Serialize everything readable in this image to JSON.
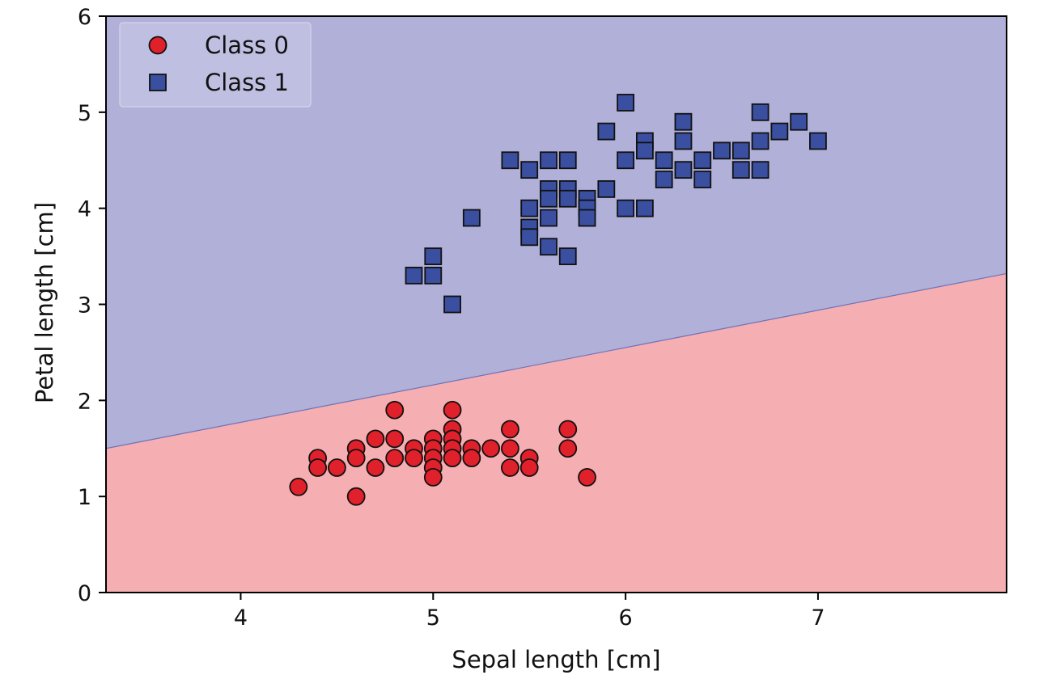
{
  "chart_data": {
    "type": "scatter",
    "xlabel": "Sepal length [cm]",
    "ylabel": "Petal length [cm]",
    "xlim": [
      3.3,
      7.98
    ],
    "ylim": [
      0,
      6
    ],
    "xticks": [
      4,
      5,
      6,
      7
    ],
    "yticks": [
      0,
      1,
      2,
      3,
      4,
      5,
      6
    ],
    "grid": false,
    "legend_position": "upper-left",
    "decision_boundary": {
      "description": "linear",
      "points": [
        [
          3.3,
          1.5
        ],
        [
          7.98,
          3.32
        ]
      ],
      "regions": [
        {
          "name": "Class 0",
          "side": "below",
          "color": "#f5afb3"
        },
        {
          "name": "Class 1",
          "side": "above",
          "color": "#b0b0d9"
        }
      ]
    },
    "series": [
      {
        "name": "Class 0",
        "marker": "circle",
        "color": "#e0202a",
        "points": [
          [
            4.3,
            1.1
          ],
          [
            4.4,
            1.4
          ],
          [
            4.4,
            1.3
          ],
          [
            4.5,
            1.3
          ],
          [
            4.6,
            1.5
          ],
          [
            4.6,
            1.4
          ],
          [
            4.6,
            1.0
          ],
          [
            4.7,
            1.6
          ],
          [
            4.7,
            1.3
          ],
          [
            4.8,
            1.9
          ],
          [
            4.8,
            1.6
          ],
          [
            4.8,
            1.4
          ],
          [
            4.9,
            1.5
          ],
          [
            4.9,
            1.4
          ],
          [
            5.0,
            1.6
          ],
          [
            5.0,
            1.5
          ],
          [
            5.0,
            1.4
          ],
          [
            5.0,
            1.3
          ],
          [
            5.0,
            1.2
          ],
          [
            5.1,
            1.9
          ],
          [
            5.1,
            1.7
          ],
          [
            5.1,
            1.6
          ],
          [
            5.1,
            1.5
          ],
          [
            5.1,
            1.4
          ],
          [
            5.2,
            1.5
          ],
          [
            5.2,
            1.4
          ],
          [
            5.3,
            1.5
          ],
          [
            5.4,
            1.7
          ],
          [
            5.4,
            1.5
          ],
          [
            5.4,
            1.3
          ],
          [
            5.5,
            1.4
          ],
          [
            5.5,
            1.3
          ],
          [
            5.7,
            1.7
          ],
          [
            5.7,
            1.5
          ],
          [
            5.8,
            1.2
          ]
        ]
      },
      {
        "name": "Class 1",
        "marker": "square",
        "color": "#3a4fa0",
        "points": [
          [
            4.9,
            3.3
          ],
          [
            5.0,
            3.5
          ],
          [
            5.0,
            3.3
          ],
          [
            5.1,
            3.0
          ],
          [
            5.2,
            3.9
          ],
          [
            5.4,
            4.5
          ],
          [
            5.5,
            4.4
          ],
          [
            5.5,
            4.0
          ],
          [
            5.5,
            3.8
          ],
          [
            5.5,
            3.7
          ],
          [
            5.6,
            4.5
          ],
          [
            5.6,
            4.2
          ],
          [
            5.6,
            4.1
          ],
          [
            5.6,
            3.9
          ],
          [
            5.6,
            3.6
          ],
          [
            5.7,
            4.5
          ],
          [
            5.7,
            4.2
          ],
          [
            5.7,
            4.1
          ],
          [
            5.7,
            3.5
          ],
          [
            5.8,
            4.1
          ],
          [
            5.8,
            4.0
          ],
          [
            5.8,
            3.9
          ],
          [
            5.9,
            4.8
          ],
          [
            5.9,
            4.2
          ],
          [
            6.0,
            5.1
          ],
          [
            6.0,
            4.5
          ],
          [
            6.0,
            4.0
          ],
          [
            6.1,
            4.7
          ],
          [
            6.1,
            4.6
          ],
          [
            6.1,
            4.0
          ],
          [
            6.2,
            4.5
          ],
          [
            6.2,
            4.3
          ],
          [
            6.3,
            4.9
          ],
          [
            6.3,
            4.7
          ],
          [
            6.3,
            4.4
          ],
          [
            6.4,
            4.5
          ],
          [
            6.4,
            4.3
          ],
          [
            6.5,
            4.6
          ],
          [
            6.6,
            4.6
          ],
          [
            6.6,
            4.4
          ],
          [
            6.7,
            5.0
          ],
          [
            6.7,
            4.7
          ],
          [
            6.7,
            4.4
          ],
          [
            6.8,
            4.8
          ],
          [
            6.9,
            4.9
          ],
          [
            7.0,
            4.7
          ]
        ]
      }
    ]
  }
}
